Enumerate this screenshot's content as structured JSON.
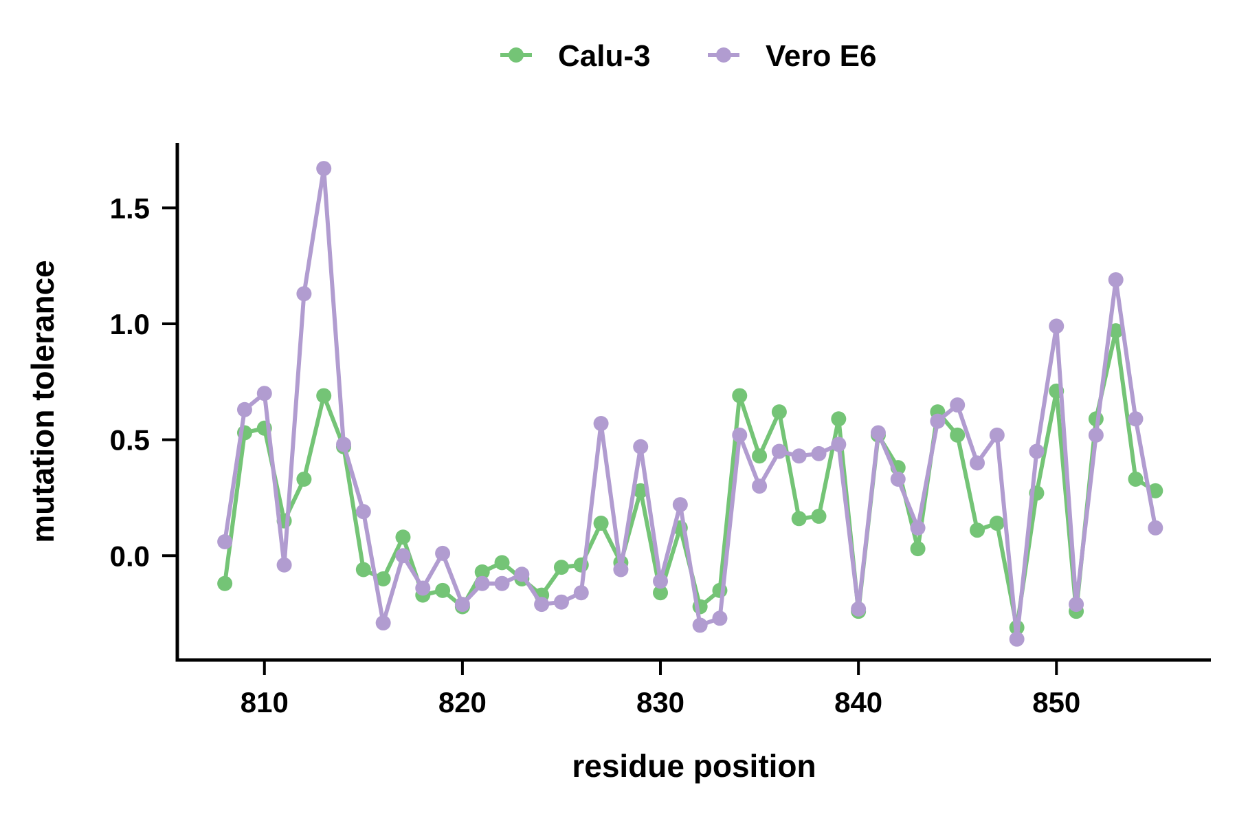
{
  "chart_data": {
    "type": "line",
    "xlabel": "residue position",
    "ylabel": "mutation tolerance",
    "xlim": [
      805.6,
      857.8
    ],
    "ylim": [
      -0.45,
      1.78
    ],
    "xticks": [
      810,
      820,
      830,
      840,
      850
    ],
    "yticks": [
      0.0,
      0.5,
      1.0,
      1.5
    ],
    "ytick_labels": [
      "0.0",
      "0.5",
      "1.0",
      "1.5"
    ],
    "grid": false,
    "legend_position": "top-center",
    "x": [
      808,
      809,
      810,
      811,
      812,
      813,
      814,
      815,
      816,
      817,
      818,
      819,
      820,
      821,
      822,
      823,
      824,
      825,
      826,
      827,
      828,
      829,
      830,
      831,
      832,
      833,
      834,
      835,
      836,
      837,
      838,
      839,
      840,
      841,
      842,
      843,
      844,
      845,
      846,
      847,
      848,
      849,
      850,
      851,
      852,
      853,
      854,
      855
    ],
    "series": [
      {
        "name": "Calu-3",
        "color": "#74c476",
        "values": [
          -0.12,
          0.53,
          0.55,
          0.15,
          0.33,
          0.69,
          0.47,
          -0.06,
          -0.1,
          0.08,
          -0.17,
          -0.15,
          -0.22,
          -0.07,
          -0.03,
          -0.1,
          -0.17,
          -0.05,
          -0.04,
          0.14,
          -0.03,
          0.28,
          -0.16,
          0.12,
          -0.22,
          -0.15,
          0.69,
          0.43,
          0.62,
          0.16,
          0.17,
          0.59,
          -0.24,
          0.52,
          0.38,
          0.03,
          0.62,
          0.52,
          0.11,
          0.14,
          -0.31,
          0.27,
          0.71,
          -0.24,
          0.59,
          0.97,
          0.33,
          0.28
        ]
      },
      {
        "name": "Vero E6",
        "color": "#b19cd0",
        "values": [
          0.06,
          0.63,
          0.7,
          -0.04,
          1.13,
          1.67,
          0.48,
          0.19,
          -0.29,
          0.0,
          -0.14,
          0.01,
          -0.21,
          -0.12,
          -0.12,
          -0.08,
          -0.21,
          -0.2,
          -0.16,
          0.57,
          -0.06,
          0.47,
          -0.11,
          0.22,
          -0.3,
          -0.27,
          0.52,
          0.3,
          0.45,
          0.43,
          0.44,
          0.48,
          -0.23,
          0.53,
          0.33,
          0.12,
          0.58,
          0.65,
          0.4,
          0.52,
          -0.36,
          0.45,
          0.99,
          -0.21,
          0.52,
          1.19,
          0.59,
          0.12
        ]
      }
    ]
  }
}
